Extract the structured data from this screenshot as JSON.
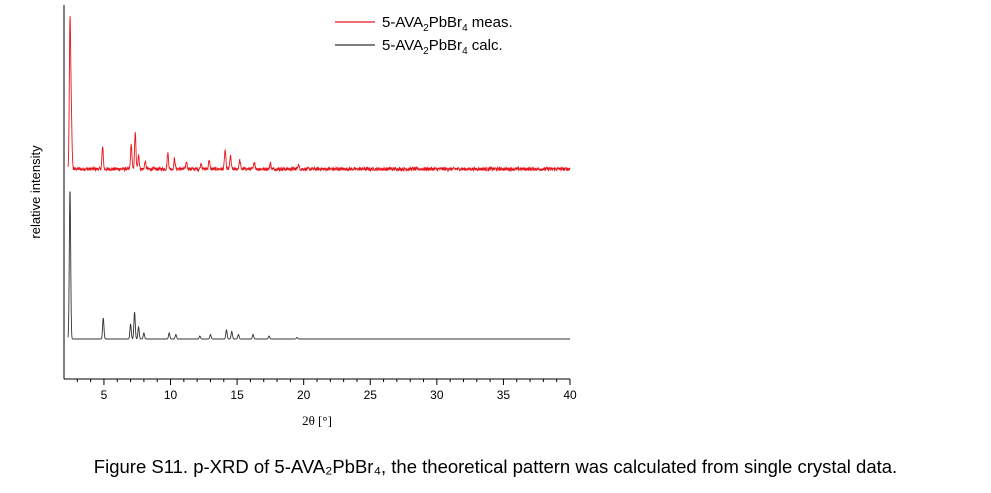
{
  "chart_data": {
    "type": "line",
    "title": "",
    "xlabel": "2θ [°]",
    "ylabel": "relative intensity",
    "xlim": [
      2,
      40
    ],
    "x_ticks": [
      5,
      10,
      15,
      20,
      25,
      30,
      35,
      40
    ],
    "y_ticks_shown": false,
    "legend_position": "top-right",
    "series": [
      {
        "name_main": "5-AVA",
        "name_sub": "2",
        "name_mid": "PbBr",
        "name_sub2": "4",
        "name_tail": " meas.",
        "color": "#e8141b",
        "baseline": 0.42,
        "noise": 0.012,
        "peaks": [
          {
            "x": 2.45,
            "y": 1.0
          },
          {
            "x": 2.55,
            "y": 0.35
          },
          {
            "x": 4.9,
            "y": 0.15
          },
          {
            "x": 7.05,
            "y": 0.17
          },
          {
            "x": 7.35,
            "y": 0.25
          },
          {
            "x": 7.6,
            "y": 0.1
          },
          {
            "x": 8.1,
            "y": 0.05
          },
          {
            "x": 9.8,
            "y": 0.11
          },
          {
            "x": 10.3,
            "y": 0.07
          },
          {
            "x": 11.2,
            "y": 0.05
          },
          {
            "x": 12.3,
            "y": 0.04
          },
          {
            "x": 12.9,
            "y": 0.06
          },
          {
            "x": 14.1,
            "y": 0.13
          },
          {
            "x": 14.5,
            "y": 0.09
          },
          {
            "x": 15.2,
            "y": 0.06
          },
          {
            "x": 16.3,
            "y": 0.05
          },
          {
            "x": 17.5,
            "y": 0.04
          },
          {
            "x": 19.6,
            "y": 0.03
          }
        ]
      },
      {
        "name_main": "5-AVA",
        "name_sub": "2",
        "name_mid": "PbBr",
        "name_sub2": "4",
        "name_tail": " calc.",
        "color": "#333333",
        "baseline": 0.0,
        "noise": 0.0,
        "peaks": [
          {
            "x": 2.45,
            "y": 1.0
          },
          {
            "x": 4.95,
            "y": 0.14
          },
          {
            "x": 7.0,
            "y": 0.1
          },
          {
            "x": 7.3,
            "y": 0.18
          },
          {
            "x": 7.6,
            "y": 0.08
          },
          {
            "x": 8.0,
            "y": 0.04
          },
          {
            "x": 9.9,
            "y": 0.04
          },
          {
            "x": 10.4,
            "y": 0.03
          },
          {
            "x": 12.2,
            "y": 0.02
          },
          {
            "x": 13.0,
            "y": 0.03
          },
          {
            "x": 14.2,
            "y": 0.06
          },
          {
            "x": 14.6,
            "y": 0.05
          },
          {
            "x": 15.1,
            "y": 0.03
          },
          {
            "x": 16.2,
            "y": 0.03
          },
          {
            "x": 17.4,
            "y": 0.02
          },
          {
            "x": 19.5,
            "y": 0.01
          }
        ]
      }
    ]
  },
  "caption": "Figure S11. p-XRD of 5-AVA₂PbBr₄, the theoretical pattern was calculated from single crystal data."
}
